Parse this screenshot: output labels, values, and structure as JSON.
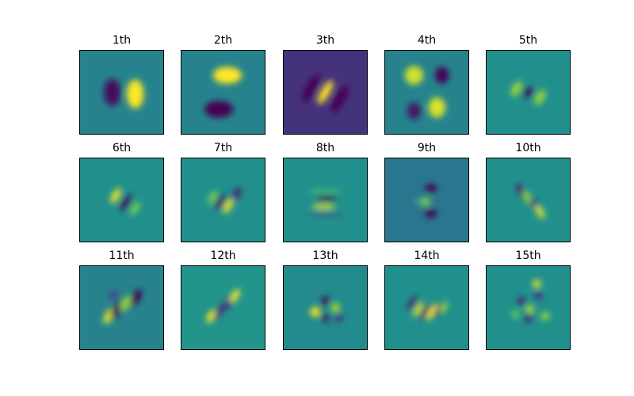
{
  "chart_data": {
    "type": "heatmap",
    "grid": {
      "rows": 3,
      "cols": 5
    },
    "colormap": "viridis",
    "axes_ticks": false,
    "panels": [
      {
        "title": "1th",
        "background": 0.45,
        "blobs": [
          {
            "x": 0.39,
            "y": 0.5,
            "v": -0.42,
            "sx": 0.1,
            "sy": 0.16,
            "rot": 0
          },
          {
            "x": 0.66,
            "y": 0.52,
            "v": 0.55,
            "sx": 0.1,
            "sy": 0.17,
            "rot": 0
          }
        ]
      },
      {
        "title": "2th",
        "background": 0.45,
        "blobs": [
          {
            "x": 0.55,
            "y": 0.3,
            "v": 0.55,
            "sx": 0.17,
            "sy": 0.1,
            "rot": 0
          },
          {
            "x": 0.45,
            "y": 0.7,
            "v": -0.48,
            "sx": 0.17,
            "sy": 0.1,
            "rot": 0
          }
        ]
      },
      {
        "title": "3th",
        "background": 0.15,
        "blobs": [
          {
            "x": 0.5,
            "y": 0.5,
            "v": 0.85,
            "sx": 0.05,
            "sy": 0.16,
            "rot": 30
          },
          {
            "x": 0.33,
            "y": 0.45,
            "v": -0.15,
            "sx": 0.06,
            "sy": 0.18,
            "rot": 30
          },
          {
            "x": 0.67,
            "y": 0.58,
            "v": -0.15,
            "sx": 0.06,
            "sy": 0.18,
            "rot": 30
          }
        ]
      },
      {
        "title": "4th",
        "background": 0.45,
        "blobs": [
          {
            "x": 0.35,
            "y": 0.3,
            "v": 0.48,
            "sx": 0.11,
            "sy": 0.11,
            "rot": 0
          },
          {
            "x": 0.68,
            "y": 0.3,
            "v": -0.45,
            "sx": 0.08,
            "sy": 0.1,
            "rot": 0
          },
          {
            "x": 0.35,
            "y": 0.72,
            "v": -0.4,
            "sx": 0.08,
            "sy": 0.1,
            "rot": 0
          },
          {
            "x": 0.62,
            "y": 0.68,
            "v": 0.5,
            "sx": 0.1,
            "sy": 0.12,
            "rot": 0
          }
        ]
      },
      {
        "title": "5th",
        "background": 0.5,
        "blobs": [
          {
            "x": 0.5,
            "y": 0.5,
            "v": -0.48,
            "sx": 0.05,
            "sy": 0.07,
            "rot": 30
          },
          {
            "x": 0.36,
            "y": 0.46,
            "v": 0.35,
            "sx": 0.05,
            "sy": 0.1,
            "rot": 30
          },
          {
            "x": 0.64,
            "y": 0.56,
            "v": 0.35,
            "sx": 0.05,
            "sy": 0.1,
            "rot": 30
          }
        ]
      },
      {
        "title": "6th",
        "background": 0.5,
        "blobs": [
          {
            "x": 0.43,
            "y": 0.45,
            "v": 0.5,
            "sx": 0.04,
            "sy": 0.1,
            "rot": 30
          },
          {
            "x": 0.55,
            "y": 0.53,
            "v": -0.48,
            "sx": 0.04,
            "sy": 0.11,
            "rot": 30
          },
          {
            "x": 0.66,
            "y": 0.6,
            "v": 0.3,
            "sx": 0.04,
            "sy": 0.09,
            "rot": 30
          }
        ]
      },
      {
        "title": "7th",
        "background": 0.5,
        "blobs": [
          {
            "x": 0.38,
            "y": 0.47,
            "v": 0.3,
            "sx": 0.04,
            "sy": 0.09,
            "rot": 30
          },
          {
            "x": 0.47,
            "y": 0.52,
            "v": -0.45,
            "sx": 0.04,
            "sy": 0.1,
            "rot": 30
          },
          {
            "x": 0.56,
            "y": 0.57,
            "v": 0.48,
            "sx": 0.04,
            "sy": 0.1,
            "rot": 30
          },
          {
            "x": 0.66,
            "y": 0.43,
            "v": -0.4,
            "sx": 0.04,
            "sy": 0.09,
            "rot": 30
          }
        ]
      },
      {
        "title": "8th",
        "background": 0.5,
        "blobs": [
          {
            "x": 0.5,
            "y": 0.4,
            "v": 0.2,
            "sx": 0.2,
            "sy": 0.025,
            "rot": 0
          },
          {
            "x": 0.52,
            "y": 0.48,
            "v": -0.5,
            "sx": 0.12,
            "sy": 0.03,
            "rot": 0
          },
          {
            "x": 0.48,
            "y": 0.58,
            "v": 0.45,
            "sx": 0.14,
            "sy": 0.03,
            "rot": 0
          },
          {
            "x": 0.5,
            "y": 0.67,
            "v": -0.2,
            "sx": 0.2,
            "sy": 0.025,
            "rot": 0
          }
        ]
      },
      {
        "title": "9th",
        "background": 0.4,
        "blobs": [
          {
            "x": 0.55,
            "y": 0.36,
            "v": -0.4,
            "sx": 0.07,
            "sy": 0.05,
            "rot": 0
          },
          {
            "x": 0.48,
            "y": 0.52,
            "v": 0.4,
            "sx": 0.07,
            "sy": 0.05,
            "rot": 0
          },
          {
            "x": 0.55,
            "y": 0.66,
            "v": -0.4,
            "sx": 0.07,
            "sy": 0.05,
            "rot": 0
          },
          {
            "x": 0.4,
            "y": 0.52,
            "v": 0.2,
            "sx": 0.04,
            "sy": 0.04,
            "rot": 0
          }
        ]
      },
      {
        "title": "10th",
        "background": 0.5,
        "blobs": [
          {
            "x": 0.42,
            "y": 0.4,
            "v": -0.42,
            "sx": 0.04,
            "sy": 0.1,
            "rot": -30
          },
          {
            "x": 0.5,
            "y": 0.48,
            "v": 0.35,
            "sx": 0.04,
            "sy": 0.1,
            "rot": -30
          },
          {
            "x": 0.58,
            "y": 0.56,
            "v": -0.38,
            "sx": 0.04,
            "sy": 0.1,
            "rot": -30
          },
          {
            "x": 0.64,
            "y": 0.64,
            "v": 0.45,
            "sx": 0.04,
            "sy": 0.09,
            "rot": -30
          }
        ]
      },
      {
        "title": "11th",
        "background": 0.45,
        "blobs": [
          {
            "x": 0.35,
            "y": 0.6,
            "v": 0.5,
            "sx": 0.05,
            "sy": 0.1,
            "rot": 30
          },
          {
            "x": 0.45,
            "y": 0.52,
            "v": -0.45,
            "sx": 0.05,
            "sy": 0.12,
            "rot": 30
          },
          {
            "x": 0.55,
            "y": 0.45,
            "v": 0.4,
            "sx": 0.05,
            "sy": 0.1,
            "rot": 30
          },
          {
            "x": 0.67,
            "y": 0.38,
            "v": -0.45,
            "sx": 0.05,
            "sy": 0.11,
            "rot": 30
          },
          {
            "x": 0.4,
            "y": 0.35,
            "v": -0.2,
            "sx": 0.06,
            "sy": 0.06,
            "rot": 0
          }
        ]
      },
      {
        "title": "12th",
        "background": 0.52,
        "blobs": [
          {
            "x": 0.36,
            "y": 0.6,
            "v": 0.5,
            "sx": 0.04,
            "sy": 0.09,
            "rot": 30
          },
          {
            "x": 0.45,
            "y": 0.55,
            "v": -0.4,
            "sx": 0.04,
            "sy": 0.09,
            "rot": 30
          },
          {
            "x": 0.56,
            "y": 0.45,
            "v": -0.4,
            "sx": 0.04,
            "sy": 0.09,
            "rot": 30
          },
          {
            "x": 0.64,
            "y": 0.36,
            "v": 0.48,
            "sx": 0.04,
            "sy": 0.09,
            "rot": 30
          }
        ]
      },
      {
        "title": "13th",
        "background": 0.48,
        "blobs": [
          {
            "x": 0.38,
            "y": 0.55,
            "v": 0.5,
            "sx": 0.06,
            "sy": 0.06,
            "rot": 0
          },
          {
            "x": 0.5,
            "y": 0.42,
            "v": -0.45,
            "sx": 0.05,
            "sy": 0.05,
            "rot": 0
          },
          {
            "x": 0.62,
            "y": 0.5,
            "v": 0.4,
            "sx": 0.05,
            "sy": 0.06,
            "rot": 0
          },
          {
            "x": 0.5,
            "y": 0.62,
            "v": -0.4,
            "sx": 0.05,
            "sy": 0.05,
            "rot": 0
          },
          {
            "x": 0.66,
            "y": 0.62,
            "v": -0.3,
            "sx": 0.05,
            "sy": 0.05,
            "rot": 0
          }
        ]
      },
      {
        "title": "14th",
        "background": 0.5,
        "blobs": [
          {
            "x": 0.33,
            "y": 0.45,
            "v": -0.4,
            "sx": 0.035,
            "sy": 0.1,
            "rot": 30
          },
          {
            "x": 0.4,
            "y": 0.52,
            "v": 0.45,
            "sx": 0.035,
            "sy": 0.1,
            "rot": 30
          },
          {
            "x": 0.48,
            "y": 0.55,
            "v": -0.45,
            "sx": 0.035,
            "sy": 0.11,
            "rot": 30
          },
          {
            "x": 0.56,
            "y": 0.55,
            "v": 0.5,
            "sx": 0.035,
            "sy": 0.11,
            "rot": 30
          },
          {
            "x": 0.64,
            "y": 0.53,
            "v": -0.4,
            "sx": 0.035,
            "sy": 0.1,
            "rot": 30
          },
          {
            "x": 0.7,
            "y": 0.5,
            "v": 0.35,
            "sx": 0.035,
            "sy": 0.08,
            "rot": 30
          }
        ]
      },
      {
        "title": "15th",
        "background": 0.5,
        "blobs": [
          {
            "x": 0.42,
            "y": 0.42,
            "v": -0.4,
            "sx": 0.05,
            "sy": 0.05,
            "rot": 0
          },
          {
            "x": 0.52,
            "y": 0.52,
            "v": 0.4,
            "sx": 0.05,
            "sy": 0.05,
            "rot": 0
          },
          {
            "x": 0.62,
            "y": 0.36,
            "v": -0.35,
            "sx": 0.05,
            "sy": 0.05,
            "rot": 0
          },
          {
            "x": 0.6,
            "y": 0.22,
            "v": 0.45,
            "sx": 0.05,
            "sy": 0.05,
            "rot": 0
          },
          {
            "x": 0.5,
            "y": 0.62,
            "v": -0.4,
            "sx": 0.05,
            "sy": 0.05,
            "rot": 0
          },
          {
            "x": 0.7,
            "y": 0.6,
            "v": 0.35,
            "sx": 0.05,
            "sy": 0.05,
            "rot": 0
          },
          {
            "x": 0.35,
            "y": 0.58,
            "v": 0.25,
            "sx": 0.05,
            "sy": 0.05,
            "rot": 0
          }
        ]
      }
    ]
  }
}
